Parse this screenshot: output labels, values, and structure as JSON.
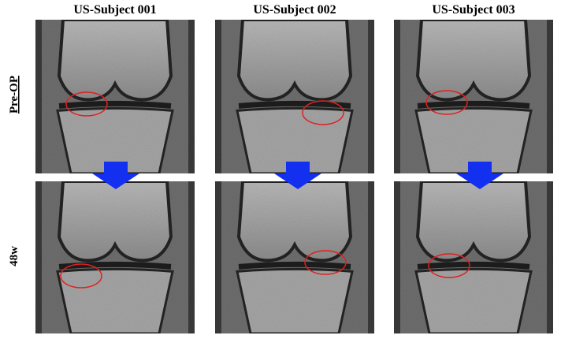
{
  "columns": [
    {
      "label": "US-Subject 001"
    },
    {
      "label": "US-Subject 002"
    },
    {
      "label": "US-Subject 003"
    }
  ],
  "rows": [
    {
      "label": "Pre-OP"
    },
    {
      "label": "48w"
    }
  ]
}
